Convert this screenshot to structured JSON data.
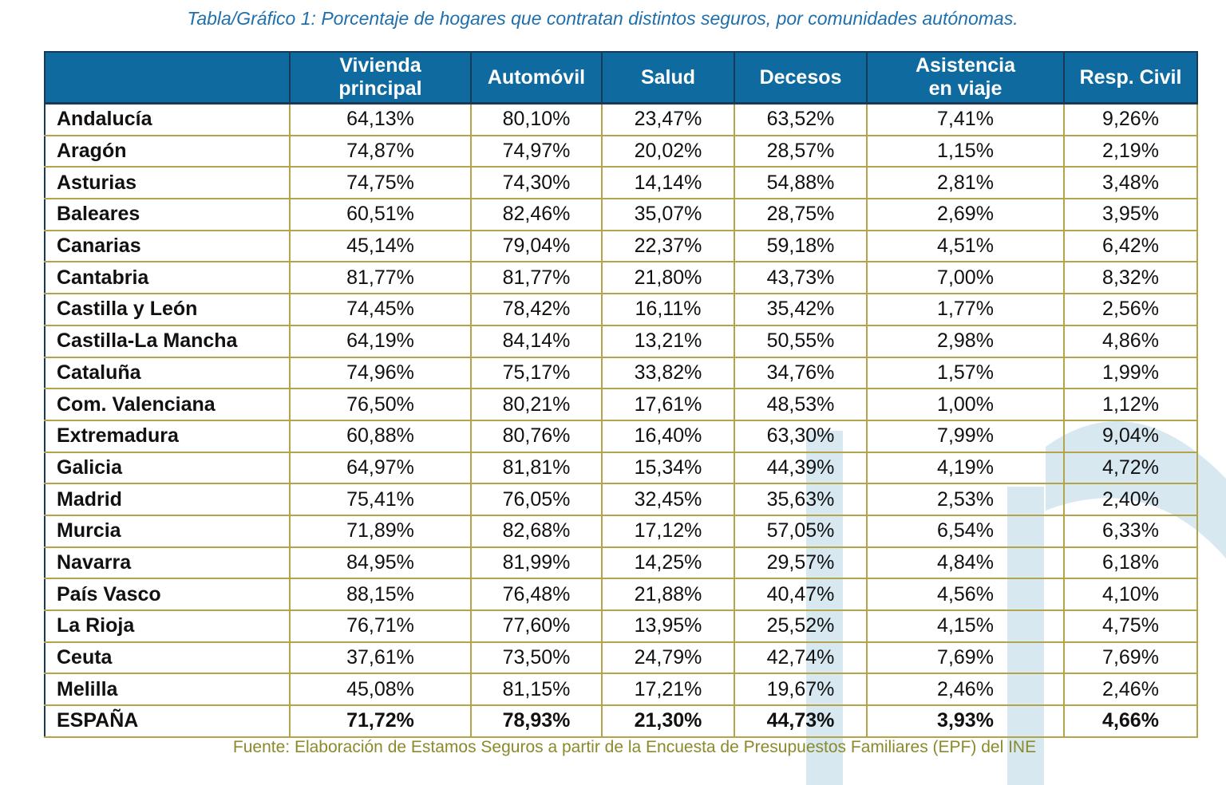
{
  "caption": "Tabla/Gráfico 1: Porcentaje de hogares que contratan distintos seguros, por comunidades autónomas.",
  "colors": {
    "header_bg": "#0f6aa0",
    "caption": "#1f6fad",
    "grid": "#b3a349",
    "source": "#8b8a2a",
    "watermark": "#d5e6ef"
  },
  "table": {
    "columns": [
      {
        "line1": "Vivienda",
        "line2": "principal"
      },
      {
        "line1": "Automóvil",
        "line2": ""
      },
      {
        "line1": "Salud",
        "line2": ""
      },
      {
        "line1": "Decesos",
        "line2": ""
      },
      {
        "line1": "Asistencia",
        "line2": "en viaje"
      },
      {
        "line1": "Resp. Civil",
        "line2": ""
      }
    ],
    "rows": [
      {
        "region": "Andalucía",
        "values": [
          "64,13%",
          "80,10%",
          "23,47%",
          "63,52%",
          "7,41%",
          "9,26%"
        ]
      },
      {
        "region": "Aragón",
        "values": [
          "74,87%",
          "74,97%",
          "20,02%",
          "28,57%",
          "1,15%",
          "2,19%"
        ]
      },
      {
        "region": "Asturias",
        "values": [
          "74,75%",
          "74,30%",
          "14,14%",
          "54,88%",
          "2,81%",
          "3,48%"
        ]
      },
      {
        "region": "Baleares",
        "values": [
          "60,51%",
          "82,46%",
          "35,07%",
          "28,75%",
          "2,69%",
          "3,95%"
        ]
      },
      {
        "region": "Canarias",
        "values": [
          "45,14%",
          "79,04%",
          "22,37%",
          "59,18%",
          "4,51%",
          "6,42%"
        ]
      },
      {
        "region": "Cantabria",
        "values": [
          "81,77%",
          "81,77%",
          "21,80%",
          "43,73%",
          "7,00%",
          "8,32%"
        ]
      },
      {
        "region": "Castilla y León",
        "values": [
          "74,45%",
          "78,42%",
          "16,11%",
          "35,42%",
          "1,77%",
          "2,56%"
        ]
      },
      {
        "region": "Castilla-La Mancha",
        "values": [
          "64,19%",
          "84,14%",
          "13,21%",
          "50,55%",
          "2,98%",
          "4,86%"
        ]
      },
      {
        "region": "Cataluña",
        "values": [
          "74,96%",
          "75,17%",
          "33,82%",
          "34,76%",
          "1,57%",
          "1,99%"
        ]
      },
      {
        "region": "Com. Valenciana",
        "values": [
          "76,50%",
          "80,21%",
          "17,61%",
          "48,53%",
          "1,00%",
          "1,12%"
        ]
      },
      {
        "region": "Extremadura",
        "values": [
          "60,88%",
          "80,76%",
          "16,40%",
          "63,30%",
          "7,99%",
          "9,04%"
        ]
      },
      {
        "region": "Galicia",
        "values": [
          "64,97%",
          "81,81%",
          "15,34%",
          "44,39%",
          "4,19%",
          "4,72%"
        ]
      },
      {
        "region": "Madrid",
        "values": [
          "75,41%",
          "76,05%",
          "32,45%",
          "35,63%",
          "2,53%",
          "2,40%"
        ]
      },
      {
        "region": "Murcia",
        "values": [
          "71,89%",
          "82,68%",
          "17,12%",
          "57,05%",
          "6,54%",
          "6,33%"
        ]
      },
      {
        "region": "Navarra",
        "values": [
          "84,95%",
          "81,99%",
          "14,25%",
          "29,57%",
          "4,84%",
          "6,18%"
        ]
      },
      {
        "region": "País Vasco",
        "values": [
          "88,15%",
          "76,48%",
          "21,88%",
          "40,47%",
          "4,56%",
          "4,10%"
        ]
      },
      {
        "region": "La Rioja",
        "values": [
          "76,71%",
          "77,60%",
          "13,95%",
          "25,52%",
          "4,15%",
          "4,75%"
        ]
      },
      {
        "region": "Ceuta",
        "values": [
          "37,61%",
          "73,50%",
          "24,79%",
          "42,74%",
          "7,69%",
          "7,69%"
        ]
      },
      {
        "region": "Melilla",
        "values": [
          "45,08%",
          "81,15%",
          "17,21%",
          "19,67%",
          "2,46%",
          "2,46%"
        ]
      }
    ],
    "total": {
      "region": "ESPAÑA",
      "values": [
        "71,72%",
        "78,93%",
        "21,30%",
        "44,73%",
        "3,93%",
        "4,66%"
      ]
    }
  },
  "source": "Fuente: Elaboración de Estamos Seguros a partir de la Encuesta de Presupuestos Familiares (EPF) del INE"
}
